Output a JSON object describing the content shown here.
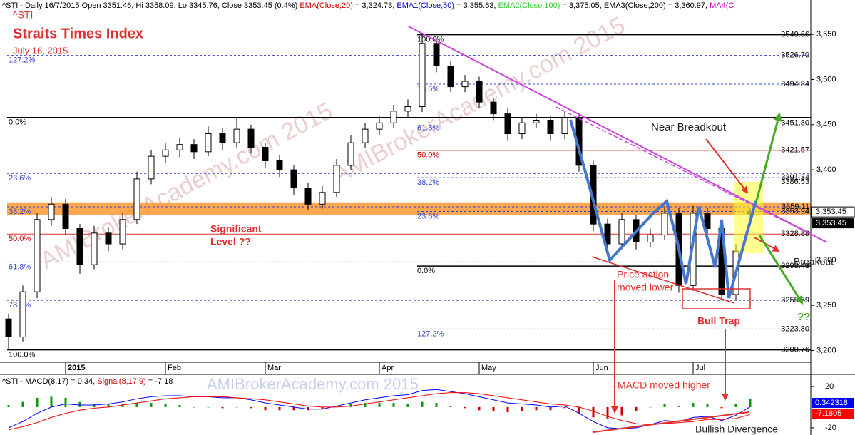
{
  "chart_data": {
    "type": "candlestick",
    "header": [
      {
        "text": "^STI - Daily 16/7/2015 Open 3351.46, Hi 3358.09, Lo 3345.76, Close 3353.45 (0.4%) ",
        "color": "#000000"
      },
      {
        "text": "EMA(Close,20)",
        "color": "#cc0000"
      },
      {
        "text": " = 3,324.78, ",
        "color": "#000000"
      },
      {
        "text": "EMA1(Close,50)",
        "color": "#0000cc"
      },
      {
        "text": " = 3,355.63, ",
        "color": "#000000"
      },
      {
        "text": "EMA2(Close,100)",
        "color": "#33cc33"
      },
      {
        "text": " = 3,375.05, ",
        "color": "#000000"
      },
      {
        "text": "EMA3(Close,200)",
        "color": "#000000"
      },
      {
        "text": " = 3,360.97, ",
        "color": "#000000"
      },
      {
        "text": "MA4(C",
        "color": "#cc00cc"
      }
    ],
    "symbol": "^STI",
    "title": "Straits Times Index",
    "subtitle": "July 16, 2015",
    "watermark": "AMIBrokerAcademy.com 2015",
    "categories": [
      null,
      null,
      null,
      null,
      "2015",
      null,
      null,
      null,
      null,
      null,
      null,
      "Feb",
      null,
      null,
      null,
      null,
      null,
      null,
      "Mar",
      null,
      null,
      null,
      null,
      null,
      null,
      null,
      "Apr",
      null,
      null,
      null,
      null,
      null,
      null,
      "May",
      null,
      null,
      null,
      null,
      null,
      null,
      null,
      "Jun",
      null,
      null,
      null,
      null,
      null,
      null,
      "Jul",
      null,
      null,
      null,
      null
    ],
    "open": [
      3235,
      3215,
      3265,
      3345,
      3362,
      3335,
      3295,
      3330,
      3318,
      3345,
      3390,
      3415,
      3422,
      3428,
      3420,
      3440,
      3430,
      3445,
      3425,
      3410,
      3400,
      3380,
      3362,
      3375,
      3405,
      3430,
      3445,
      3452,
      3465,
      3470,
      3540,
      3515,
      3492,
      3498,
      3475,
      3462,
      3440,
      3452,
      3455,
      3440,
      3458,
      3405,
      3340,
      3318,
      3345,
      3320,
      3328,
      3352,
      3272,
      3352,
      3335,
      3262,
      3351.46
    ],
    "high": [
      3240,
      3272,
      3352,
      3370,
      3368,
      3340,
      3338,
      3336,
      3352,
      3398,
      3422,
      3430,
      3436,
      3434,
      3448,
      3446,
      3458,
      3450,
      3430,
      3416,
      3405,
      3386,
      3382,
      3412,
      3438,
      3452,
      3460,
      3472,
      3478,
      3549.66,
      3546,
      3520,
      3505,
      3503,
      3480,
      3468,
      3458,
      3462,
      3460,
      3465,
      3463,
      3410,
      3346,
      3352,
      3350,
      3335,
      3360,
      3358,
      3360,
      3358,
      3340,
      3318,
      3358.09
    ],
    "low": [
      3200.76,
      3210,
      3258,
      3338,
      3328,
      3285,
      3290,
      3310,
      3312,
      3340,
      3384,
      3408,
      3414,
      3412,
      3415,
      3422,
      3424,
      3418,
      3402,
      3392,
      3372,
      3356,
      3357,
      3370,
      3400,
      3424,
      3438,
      3446,
      3458,
      3464,
      3508,
      3486,
      3486,
      3468,
      3455,
      3432,
      3434,
      3446,
      3432,
      3434,
      3398,
      3332,
      3310,
      3312,
      3312,
      3314,
      3322,
      3264,
      3266,
      3328,
      3255.59,
      3256,
      3345.76
    ],
    "close": [
      3215,
      3265,
      3345,
      3362,
      3335,
      3295,
      3330,
      3318,
      3345,
      3390,
      3415,
      3422,
      3428,
      3420,
      3440,
      3430,
      3445,
      3425,
      3410,
      3400,
      3380,
      3362,
      3375,
      3405,
      3430,
      3445,
      3452,
      3465,
      3470,
      3540,
      3515,
      3492,
      3498,
      3475,
      3462,
      3440,
      3452,
      3455,
      3440,
      3458,
      3405,
      3340,
      3318,
      3345,
      3320,
      3328,
      3352,
      3272,
      3352,
      3335,
      3262,
      3310,
      3353.45
    ],
    "ylim": [
      3187,
      3588
    ],
    "yticks": [
      {
        "value": 3200,
        "label": "3,200"
      },
      {
        "value": 3250,
        "label": "3,250"
      },
      {
        "value": 3300,
        "label": "3,300"
      },
      {
        "value": 3350,
        "label": "3,350"
      },
      {
        "value": 3400,
        "label": "3,400"
      },
      {
        "value": 3450,
        "label": "3,450"
      },
      {
        "value": 3500,
        "label": "3,500"
      },
      {
        "value": 3550,
        "label": "3,550"
      }
    ],
    "zone": [
      3350,
      3364
    ],
    "zone_color": "#ff9933",
    "fib_left": [
      {
        "value": 3526.7,
        "label": "127.2%"
      },
      {
        "value": 3458,
        "label": "0.0%"
      },
      {
        "value": 3396,
        "label": "23.6%"
      },
      {
        "value": 3359.11,
        "label": "38.2%"
      },
      {
        "value": 3328.88,
        "label": "50.0%"
      },
      {
        "value": 3298,
        "label": "61.8%"
      },
      {
        "value": 3255.59,
        "label": "78.6%"
      },
      {
        "value": 3200.76,
        "label": "100.0%"
      }
    ],
    "fib_right": [
      {
        "value": 3549.66,
        "label": "100.0%"
      },
      {
        "value": 3494.84,
        "label": "78.6%"
      },
      {
        "value": 3451.8,
        "label": "61.8%"
      },
      {
        "value": 3421.57,
        "label": "50.0%"
      },
      {
        "value": 3391.34,
        "label": "38.2%"
      },
      {
        "value": 3353.94,
        "label": "23.6%"
      },
      {
        "value": 3293.43,
        "label": "0.0%"
      },
      {
        "value": 3223.8,
        "label": "127.2%"
      }
    ],
    "price_labels": [
      {
        "value": 3549.66,
        "label": "3549.66"
      },
      {
        "value": 3526.7,
        "label": "3526.70"
      },
      {
        "value": 3494.84,
        "label": "3494.84"
      },
      {
        "value": 3451.8,
        "label": "3451.80"
      },
      {
        "value": 3421.57,
        "label": "3421.57"
      },
      {
        "value": 3391.34,
        "label": "3391.34"
      },
      {
        "value": 3386.53,
        "label": "3386.53"
      },
      {
        "value": 3359.11,
        "label": "3359.11"
      },
      {
        "value": 3353.94,
        "label": "3353.94"
      },
      {
        "value": 3328.88,
        "label": "3328.88"
      },
      {
        "value": 3293.43,
        "label": "3293.43"
      },
      {
        "value": 3255.59,
        "label": "3255.59"
      },
      {
        "value": 3223.8,
        "label": "3223.80"
      },
      {
        "value": 3200.76,
        "label": "3200.76"
      }
    ],
    "last_price": {
      "value": 3353.45,
      "label": "3,353.45"
    },
    "annotations": {
      "near_breakout": "Near Breadkout",
      "significant": [
        "Significant",
        "Level ??"
      ],
      "price_action": [
        "Price action",
        "moved lower"
      ],
      "bull_trap": "Bull Trap",
      "breakout": "Breakout",
      "question": "??",
      "macd_higher": "MACD moved higher",
      "divergence": "Bullish Divergence"
    },
    "macd": {
      "header": [
        {
          "text": "^STI - MACD(8,17) = 0.34, ",
          "color": "#000000"
        },
        {
          "text": "Signal(8,17,9)",
          "color": "#cc0000"
        },
        {
          "text": " = -7.18",
          "color": "#000000"
        }
      ],
      "ylim": [
        -27,
        31
      ],
      "yticks": [
        20,
        -20
      ],
      "series": [
        {
          "name": "MACD",
          "color": "#0000ff",
          "values": [
            -20,
            -14,
            -6,
            0,
            3,
            2,
            2,
            3,
            5,
            8,
            10,
            11,
            11,
            10,
            10,
            9,
            9,
            7,
            4,
            2,
            0,
            -2,
            -2,
            1,
            4,
            7,
            9,
            11,
            12,
            16,
            17,
            15,
            13,
            10,
            7,
            4,
            3,
            2,
            0,
            1,
            -6,
            -14,
            -20,
            -21,
            -20,
            -17,
            -13,
            -14,
            -10,
            -9,
            -13,
            -8,
            0.34
          ],
          "tag": "0.342318"
        },
        {
          "name": "Signal",
          "color": "#ff0000",
          "values": [
            -22,
            -19,
            -15,
            -10,
            -6,
            -3,
            -1,
            0,
            2,
            4,
            6,
            8,
            9,
            10,
            10,
            10,
            9,
            8,
            7,
            5,
            3,
            1,
            0,
            0,
            1,
            3,
            5,
            7,
            9,
            11,
            13,
            14,
            14,
            13,
            11,
            9,
            7,
            5,
            3,
            2,
            0,
            -4,
            -9,
            -13,
            -16,
            -17,
            -16,
            -15,
            -14,
            -12,
            -12,
            -11,
            -7.18
          ],
          "tag": "-7.1805"
        }
      ],
      "histogram": [
        2,
        5,
        9,
        10,
        9,
        5,
        3,
        3,
        3,
        4,
        4,
        3,
        2,
        0,
        0,
        -1,
        0,
        -1,
        -3,
        -3,
        -3,
        -3,
        -2,
        1,
        3,
        4,
        4,
        4,
        3,
        5,
        4,
        1,
        -1,
        -3,
        -4,
        -5,
        -4,
        -3,
        -3,
        -1,
        -6,
        -10,
        -11,
        -8,
        -4,
        0,
        3,
        1,
        4,
        3,
        -1,
        3,
        7.52
      ],
      "histogram_colors": [
        "#009900",
        "#cc0000"
      ]
    }
  }
}
